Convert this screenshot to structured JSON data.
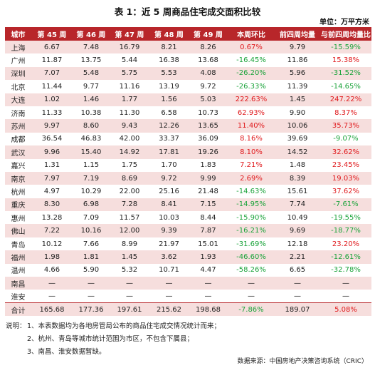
{
  "title": "表 1：近 5 周商品住宅成交面积比较",
  "unit_label": "单位：万平方米",
  "columns": [
    "城市",
    "第 45 周",
    "第 46 周",
    "第 47 周",
    "第 48 周",
    "第 49 周",
    "本周环比",
    "前四周均量",
    "与前四周均量比"
  ],
  "rows": [
    [
      "上海",
      "6.67",
      "7.48",
      "16.79",
      "8.21",
      "8.26",
      "0.67%",
      "9.79",
      "-15.59%"
    ],
    [
      "广州",
      "11.87",
      "13.75",
      "5.44",
      "16.38",
      "13.68",
      "-16.45%",
      "11.86",
      "15.38%"
    ],
    [
      "深圳",
      "7.07",
      "5.48",
      "5.75",
      "5.53",
      "4.08",
      "-26.20%",
      "5.96",
      "-31.52%"
    ],
    [
      "北京",
      "11.44",
      "9.77",
      "11.16",
      "13.19",
      "9.72",
      "-26.33%",
      "11.39",
      "-14.65%"
    ],
    [
      "大连",
      "1.02",
      "1.46",
      "1.77",
      "1.56",
      "5.03",
      "222.63%",
      "1.45",
      "247.22%"
    ],
    [
      "济南",
      "11.33",
      "10.38",
      "11.30",
      "6.58",
      "10.73",
      "62.93%",
      "9.90",
      "8.37%"
    ],
    [
      "苏州",
      "9.97",
      "8.60",
      "9.43",
      "12.26",
      "13.65",
      "11.40%",
      "10.06",
      "35.73%"
    ],
    [
      "成都",
      "36.54",
      "46.83",
      "42.00",
      "33.37",
      "36.09",
      "8.16%",
      "39.69",
      "-9.07%"
    ],
    [
      "武汉",
      "9.96",
      "15.40",
      "14.92",
      "17.81",
      "19.26",
      "8.10%",
      "14.52",
      "32.62%"
    ],
    [
      "嘉兴",
      "1.31",
      "1.15",
      "1.75",
      "1.70",
      "1.83",
      "7.21%",
      "1.48",
      "23.45%"
    ],
    [
      "南京",
      "7.97",
      "7.19",
      "8.69",
      "9.72",
      "9.99",
      "2.69%",
      "8.39",
      "19.03%"
    ],
    [
      "杭州",
      "4.97",
      "10.29",
      "22.00",
      "25.16",
      "21.48",
      "-14.63%",
      "15.61",
      "37.62%"
    ],
    [
      "重庆",
      "8.30",
      "6.98",
      "7.28",
      "8.41",
      "7.15",
      "-14.95%",
      "7.74",
      "-7.61%"
    ],
    [
      "惠州",
      "13.28",
      "7.09",
      "11.57",
      "10.03",
      "8.44",
      "-15.90%",
      "10.49",
      "-19.55%"
    ],
    [
      "佛山",
      "7.22",
      "10.16",
      "12.00",
      "9.39",
      "7.87",
      "-16.21%",
      "9.69",
      "-18.77%"
    ],
    [
      "青岛",
      "10.12",
      "7.66",
      "8.99",
      "21.97",
      "15.01",
      "-31.69%",
      "12.18",
      "23.20%"
    ],
    [
      "福州",
      "1.98",
      "1.81",
      "1.45",
      "3.62",
      "1.93",
      "-46.60%",
      "2.21",
      "-12.61%"
    ],
    [
      "温州",
      "4.66",
      "5.90",
      "5.32",
      "10.71",
      "4.47",
      "-58.26%",
      "6.65",
      "-32.78%"
    ],
    [
      "南昌",
      "—",
      "—",
      "—",
      "—",
      "—",
      "—",
      "—",
      "—"
    ],
    [
      "淮安",
      "—",
      "—",
      "—",
      "—",
      "—",
      "—",
      "—",
      "—"
    ]
  ],
  "total": [
    "合计",
    "165.68",
    "177.36",
    "197.61",
    "215.62",
    "198.68",
    "-7.86%",
    "189.07",
    "5.08%"
  ],
  "colors": {
    "header_bg": "#b8262a",
    "stripe": "#f6dedd",
    "negative": "#1aa33a",
    "positive": "#e0191c"
  },
  "notes": {
    "head": "说明：",
    "lines": [
      "1、本表数据均为各地房管局公布的商品住宅成交情况统计而来；",
      "2、杭州、青岛等城市统计范围为市区，不包含下属县；",
      "3、南昌、淮安数据暂缺。"
    ]
  },
  "source": "数据来源：中国房地产决策咨询系统（CRIC）"
}
